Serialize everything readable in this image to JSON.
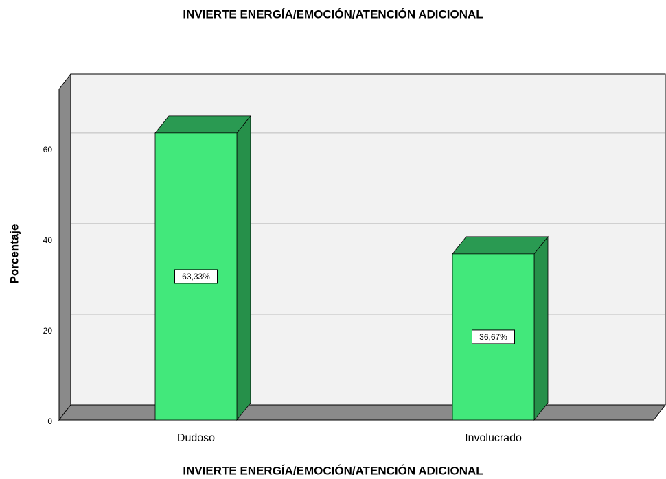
{
  "chart_data": {
    "type": "bar3d",
    "title": "INVIERTE ENERGÍA/EMOCIÓN/ATENCIÓN ADICIONAL",
    "x_label": "INVIERTE ENERGÍA/EMOCIÓN/ATENCIÓN ADICIONAL",
    "y_label": "Porcentaje",
    "categories": [
      "Dudoso",
      "Involucrado"
    ],
    "values": [
      63.33,
      36.67
    ],
    "value_labels": [
      "63,33%",
      "36,67%"
    ],
    "color": "#42e87b",
    "ylim": [
      0,
      73
    ],
    "yticks": [
      0,
      20,
      40,
      60
    ],
    "grid": true
  }
}
